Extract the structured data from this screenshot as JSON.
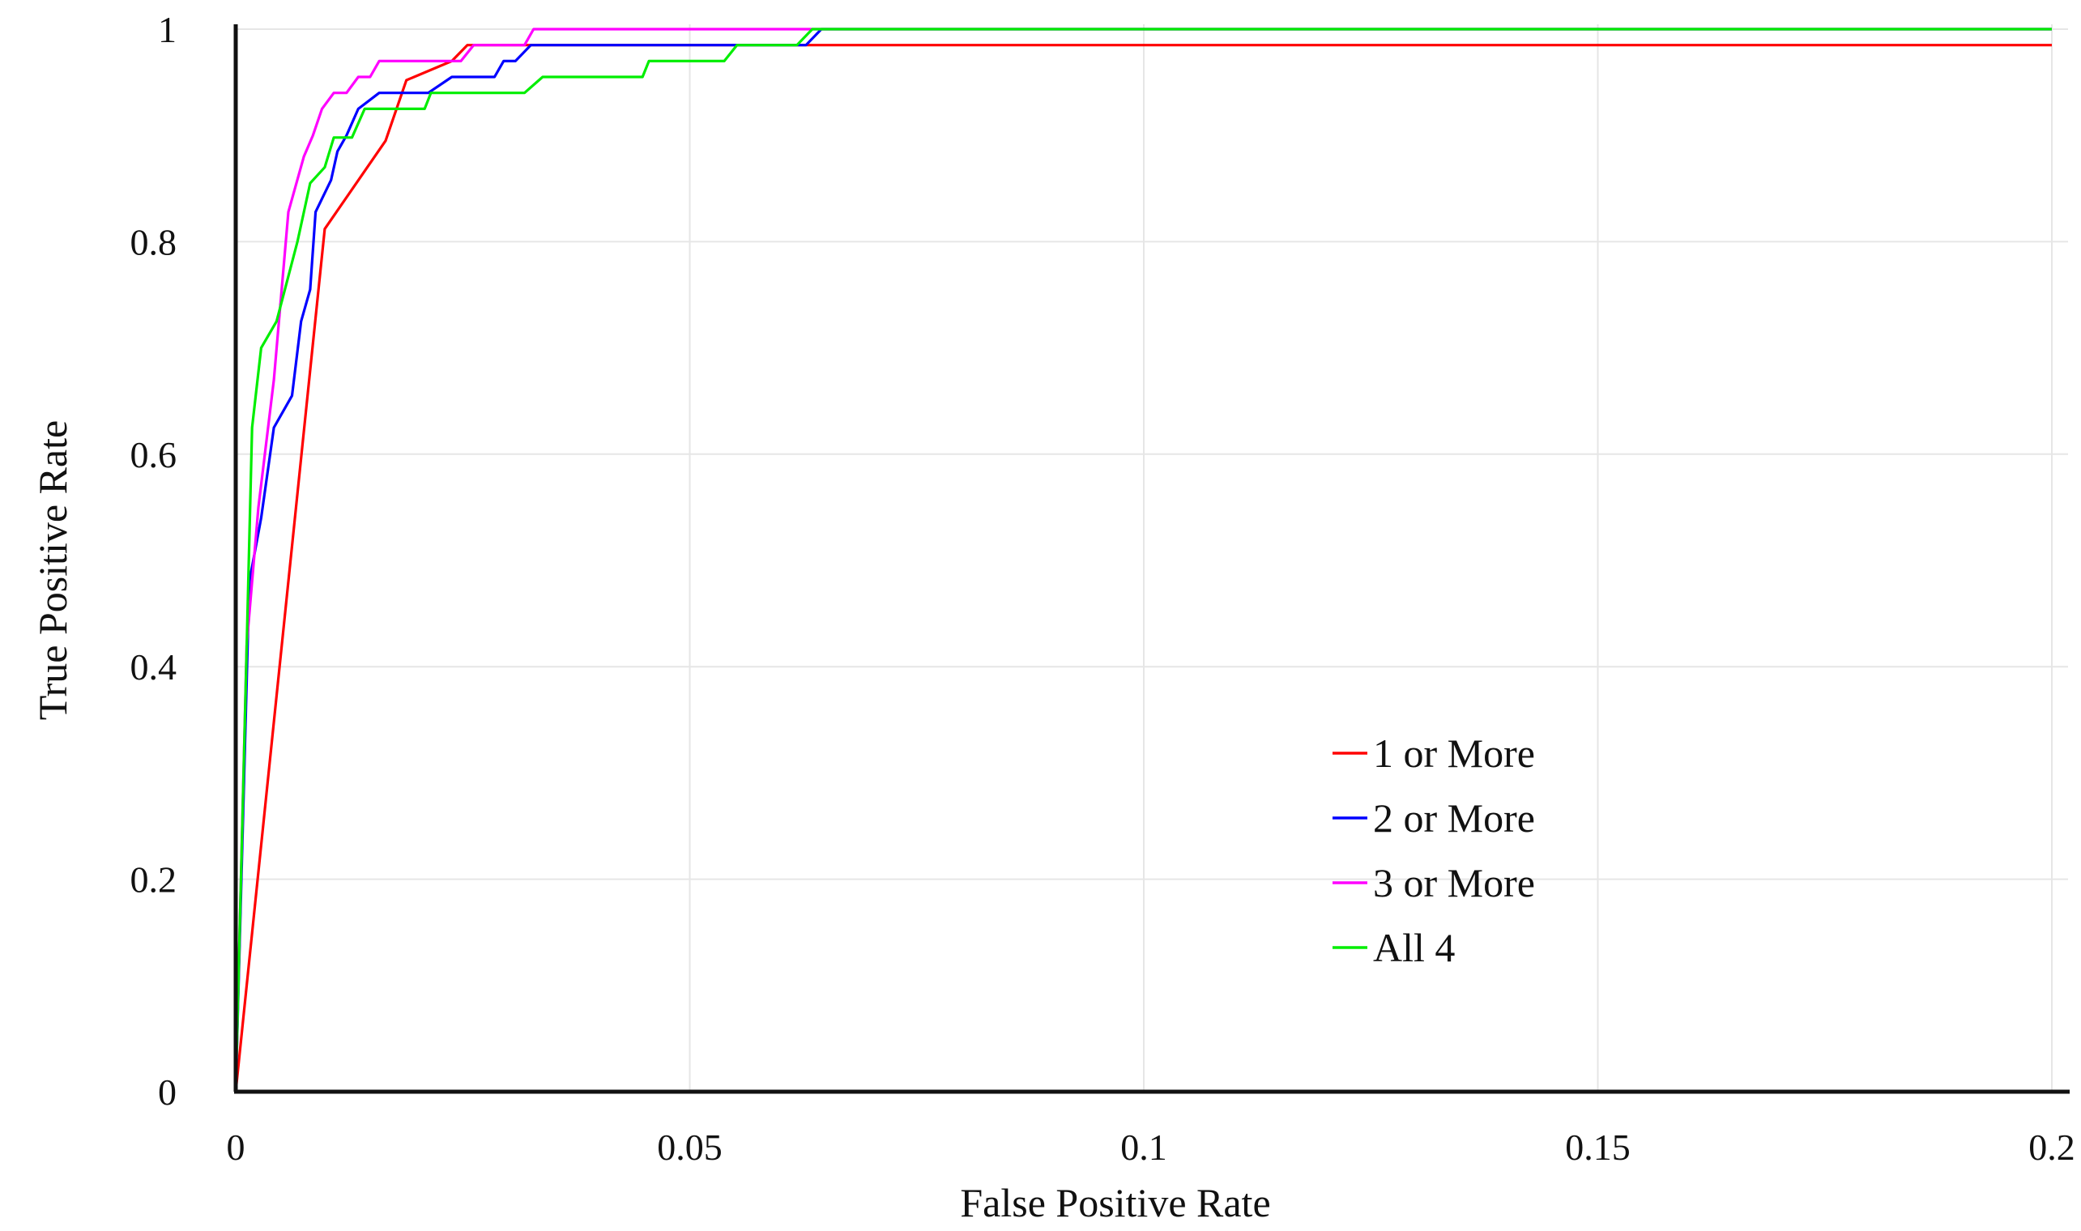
{
  "chart_data": {
    "type": "line",
    "title": "",
    "xlabel": "False Positive Rate",
    "ylabel": "True Positive Rate",
    "xlim": [
      0,
      0.2
    ],
    "ylim": [
      0,
      1
    ],
    "x_ticks": [
      0,
      0.05,
      0.1,
      0.15,
      0.2
    ],
    "x_tick_labels": [
      "0",
      "0.05",
      "0.1",
      "0.15",
      "0.2"
    ],
    "y_ticks": [
      0,
      0.2,
      0.4,
      0.6,
      0.8,
      1
    ],
    "y_tick_labels": [
      "0",
      "0.2",
      "0.4",
      "0.6",
      "0.8",
      "1"
    ],
    "grid": true,
    "legend_position": "center-right",
    "series": [
      {
        "name": "1 or More",
        "color": "#ff0000",
        "points": [
          [
            0,
            0
          ],
          [
            0.0098,
            0.812
          ],
          [
            0.0165,
            0.895
          ],
          [
            0.0188,
            0.952
          ],
          [
            0.0238,
            0.97
          ],
          [
            0.0255,
            0.985
          ],
          [
            0.2,
            0.985
          ]
        ]
      },
      {
        "name": "2 or More",
        "color": "#0000ff",
        "points": [
          [
            0,
            0
          ],
          [
            0.0015,
            0.48
          ],
          [
            0.0028,
            0.54
          ],
          [
            0.0042,
            0.625
          ],
          [
            0.0062,
            0.655
          ],
          [
            0.0072,
            0.725
          ],
          [
            0.0082,
            0.755
          ],
          [
            0.0088,
            0.828
          ],
          [
            0.0105,
            0.858
          ],
          [
            0.0112,
            0.885
          ],
          [
            0.0122,
            0.9
          ],
          [
            0.0135,
            0.925
          ],
          [
            0.0158,
            0.94
          ],
          [
            0.0198,
            0.94
          ],
          [
            0.0212,
            0.94
          ],
          [
            0.0238,
            0.955
          ],
          [
            0.0285,
            0.955
          ],
          [
            0.0295,
            0.97
          ],
          [
            0.0308,
            0.97
          ],
          [
            0.0325,
            0.985
          ],
          [
            0.0628,
            0.985
          ],
          [
            0.0645,
            1.0
          ],
          [
            0.2,
            1.0
          ]
        ]
      },
      {
        "name": "3 or More",
        "color": "#ff00ff",
        "points": [
          [
            0,
            0
          ],
          [
            0.0012,
            0.42
          ],
          [
            0.0025,
            0.55
          ],
          [
            0.0042,
            0.67
          ],
          [
            0.0058,
            0.828
          ],
          [
            0.0075,
            0.88
          ],
          [
            0.0085,
            0.9
          ],
          [
            0.0095,
            0.925
          ],
          [
            0.0108,
            0.94
          ],
          [
            0.0122,
            0.94
          ],
          [
            0.0135,
            0.955
          ],
          [
            0.0148,
            0.955
          ],
          [
            0.0158,
            0.97
          ],
          [
            0.0248,
            0.97
          ],
          [
            0.0262,
            0.985
          ],
          [
            0.0318,
            0.985
          ],
          [
            0.0328,
            1.0
          ],
          [
            0.2,
            1.0
          ]
        ]
      },
      {
        "name": "All 4",
        "color": "#00ee00",
        "points": [
          [
            0,
            0
          ],
          [
            0.0018,
            0.625
          ],
          [
            0.0028,
            0.7
          ],
          [
            0.0045,
            0.725
          ],
          [
            0.0068,
            0.8
          ],
          [
            0.0082,
            0.855
          ],
          [
            0.0098,
            0.87
          ],
          [
            0.0108,
            0.898
          ],
          [
            0.0128,
            0.898
          ],
          [
            0.0142,
            0.925
          ],
          [
            0.0208,
            0.925
          ],
          [
            0.0215,
            0.94
          ],
          [
            0.0318,
            0.94
          ],
          [
            0.0338,
            0.955
          ],
          [
            0.0448,
            0.955
          ],
          [
            0.0455,
            0.97
          ],
          [
            0.0538,
            0.97
          ],
          [
            0.0552,
            0.985
          ],
          [
            0.0618,
            0.985
          ],
          [
            0.0635,
            1.0
          ],
          [
            0.2,
            1.0
          ]
        ]
      }
    ]
  }
}
